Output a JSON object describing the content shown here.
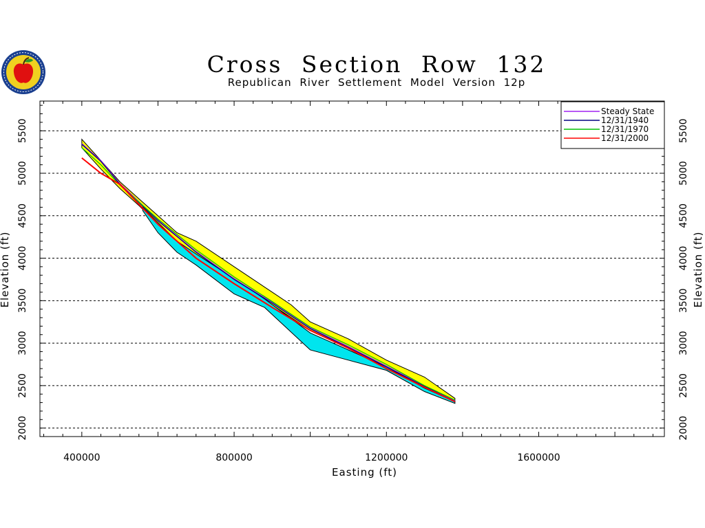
{
  "title": "Cross Section Row 132",
  "subtitle": "Republican River Settlement Model Version 12p",
  "logo": {
    "icon": "apple-seal-logo",
    "colors": [
      "#1a3f8f",
      "#f0d020",
      "#e01010",
      "#2a9a2a"
    ]
  },
  "chart_data": {
    "type": "area",
    "xlabel": "Easting (ft)",
    "ylabel": "Elevation (ft)",
    "xlim": [
      300000,
      2000000
    ],
    "ylim": [
      1900000,
      5900000
    ],
    "x_ticks": [
      "400000",
      "800000",
      "1200000",
      "1600000"
    ],
    "x_tick_values": [
      400000,
      800000,
      1200000,
      1600000
    ],
    "y_ticks": [
      "2000",
      "2500",
      "3000",
      "3500",
      "4000",
      "4500",
      "5000",
      "5500"
    ],
    "y_tick_values": [
      2000,
      2500,
      3000,
      3500,
      4000,
      4500,
      5000,
      5500
    ],
    "grid": "horizontal-dashed",
    "legend_position": "top-right",
    "layers": [
      {
        "name": "land_surface",
        "color": "#ffff00",
        "top": [
          [
            400000,
            5400
          ],
          [
            450000,
            5150
          ],
          [
            500000,
            4900
          ],
          [
            550000,
            4700
          ],
          [
            600000,
            4500
          ],
          [
            650000,
            4300
          ],
          [
            700000,
            4200
          ],
          [
            800000,
            3900
          ],
          [
            900000,
            3600
          ],
          [
            950000,
            3450
          ],
          [
            1000000,
            3250
          ],
          [
            1100000,
            3050
          ],
          [
            1200000,
            2800
          ],
          [
            1300000,
            2600
          ],
          [
            1380000,
            2350
          ]
        ],
        "bottom": [
          [
            400000,
            5300
          ],
          [
            450000,
            5050
          ],
          [
            500000,
            4820
          ],
          [
            550000,
            4620
          ],
          [
            600000,
            4400
          ],
          [
            650000,
            4180
          ],
          [
            700000,
            4020
          ],
          [
            800000,
            3730
          ],
          [
            900000,
            3450
          ],
          [
            950000,
            3300
          ],
          [
            1000000,
            3150
          ],
          [
            1100000,
            2950
          ],
          [
            1200000,
            2720
          ],
          [
            1300000,
            2480
          ],
          [
            1380000,
            2310
          ]
        ]
      },
      {
        "name": "aquifer_base",
        "color": "#00e5ee",
        "top": [
          [
            560000,
            4600
          ],
          [
            600000,
            4420
          ],
          [
            650000,
            4200
          ],
          [
            700000,
            4050
          ],
          [
            800000,
            3760
          ],
          [
            880000,
            3520
          ],
          [
            1000000,
            3120
          ],
          [
            1100000,
            2920
          ],
          [
            1200000,
            2720
          ],
          [
            1300000,
            2470
          ],
          [
            1380000,
            2310
          ]
        ],
        "bottom": [
          [
            560000,
            4560
          ],
          [
            600000,
            4300
          ],
          [
            650000,
            4070
          ],
          [
            700000,
            3920
          ],
          [
            800000,
            3580
          ],
          [
            880000,
            3420
          ],
          [
            1000000,
            2920
          ],
          [
            1100000,
            2800
          ],
          [
            1200000,
            2680
          ],
          [
            1300000,
            2430
          ],
          [
            1380000,
            2290
          ]
        ]
      }
    ],
    "series": [
      {
        "name": "Steady State",
        "color": "#a020f0",
        "x": [
          400000,
          450000,
          500000,
          600000,
          700000,
          800000,
          900000,
          1000000,
          1100000,
          1200000,
          1300000,
          1380000
        ],
        "y": [
          5350,
          5150,
          4880,
          4450,
          4080,
          3760,
          3480,
          3180,
          2960,
          2730,
          2500,
          2320
        ]
      },
      {
        "name": "12/31/1940",
        "color": "#000080",
        "x": [
          400000,
          450000,
          500000,
          600000,
          700000,
          800000,
          900000,
          1000000,
          1100000,
          1200000,
          1300000,
          1380000
        ],
        "y": [
          5340,
          5140,
          4870,
          4440,
          4070,
          3750,
          3470,
          3170,
          2950,
          2720,
          2490,
          2315
        ]
      },
      {
        "name": "12/31/1970",
        "color": "#00c000",
        "x": [
          400000,
          450000,
          500000,
          600000,
          700000,
          800000,
          900000,
          1000000,
          1100000,
          1200000,
          1300000,
          1380000
        ],
        "y": [
          5300,
          5100,
          4860,
          4460,
          4100,
          3780,
          3490,
          3190,
          2980,
          2750,
          2500,
          2330
        ]
      },
      {
        "name": "12/31/2000",
        "color": "#ff0000",
        "x": [
          400000,
          450000,
          500000,
          600000,
          700000,
          800000,
          900000,
          1000000,
          1100000,
          1200000,
          1300000,
          1380000
        ],
        "y": [
          5180,
          5000,
          4870,
          4400,
          4000,
          3700,
          3420,
          3150,
          2940,
          2700,
          2480,
          2310
        ]
      }
    ]
  }
}
